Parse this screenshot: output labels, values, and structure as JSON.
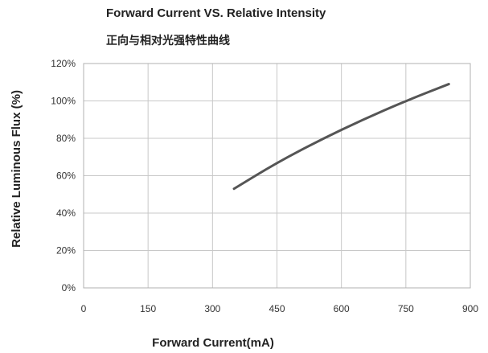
{
  "chart_data": {
    "type": "line",
    "title": "Forward Current VS. Relative Intensity",
    "subtitle": "正向与相对光强特性曲线",
    "xlabel": "Forward Current(mA)",
    "ylabel": "Relative Luminous Flux (%)",
    "xlim": [
      0,
      900
    ],
    "ylim": [
      0,
      120
    ],
    "x_ticks": [
      "0",
      "150",
      "300",
      "450",
      "600",
      "750",
      "900"
    ],
    "y_ticks": [
      "0%",
      "20%",
      "40%",
      "60%",
      "80%",
      "100%",
      "120%"
    ],
    "grid": true,
    "line_color": "#555555",
    "series": [
      {
        "x": [
          350,
          450,
          550,
          650,
          750,
          850
        ],
        "y": [
          53,
          67,
          79,
          90,
          100,
          109
        ]
      }
    ]
  }
}
